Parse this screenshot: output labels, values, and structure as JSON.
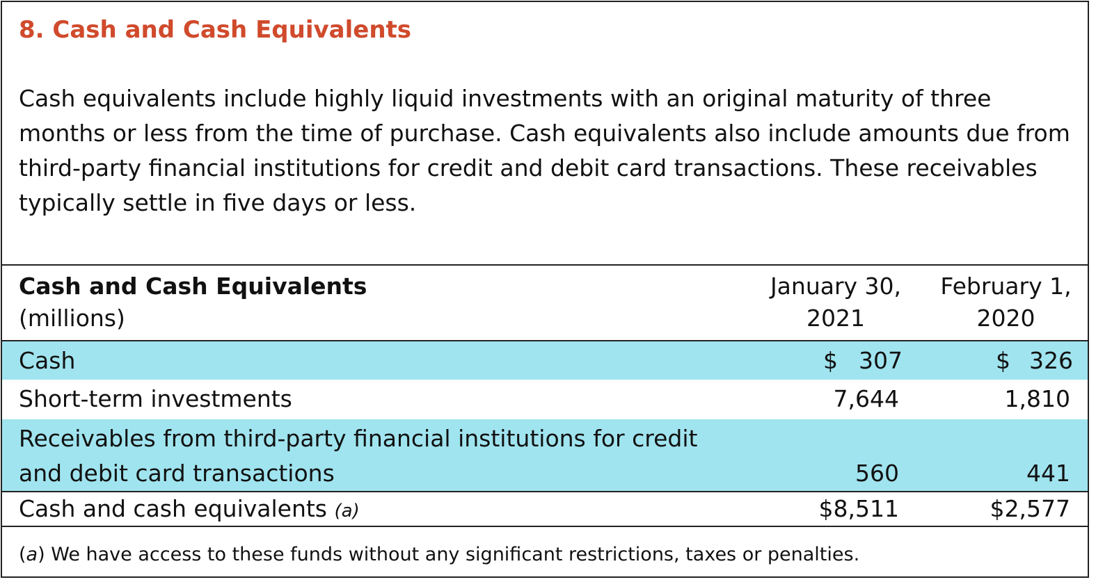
{
  "note": {
    "title": "8. Cash and Cash Equivalents",
    "intro": "Cash equivalents include highly liquid investments with an original maturity of three months or less from the time of purchase. Cash equivalents also include amounts due from third-party financial institutions for credit and debit card transactions. These receivables typically settle in five days or less."
  },
  "table": {
    "header": {
      "label_bold": "Cash and Cash Equivalents",
      "label_sub": "(millions)",
      "col1_line1": "January 30,",
      "col1_line2": "2021",
      "col2_line1": "February 1,",
      "col2_line2": "2020"
    },
    "rows": [
      {
        "label": "Cash",
        "col1_symbol": "$",
        "col1": "307",
        "col2_symbol": "$",
        "col2": "326"
      },
      {
        "label": "Short-term investments",
        "col1": "7,644",
        "col2": "1,810"
      },
      {
        "label_line1": "Receivables from third-party financial institutions for credit",
        "label_line2": "and debit card transactions",
        "col1": "560",
        "col2": "441"
      },
      {
        "label": "Cash and cash equivalents",
        "label_note": "(a)",
        "col1": "$8,511",
        "col2": "$2,577"
      }
    ],
    "band_color": "#a0e4ef"
  },
  "footnote": {
    "open": "(",
    "marker": "a",
    "text": ") We have access to these funds without any significant restrictions, taxes or penalties."
  },
  "colors": {
    "title": "#d04a2c",
    "border": "#222222",
    "band": "#a0e4ef"
  }
}
